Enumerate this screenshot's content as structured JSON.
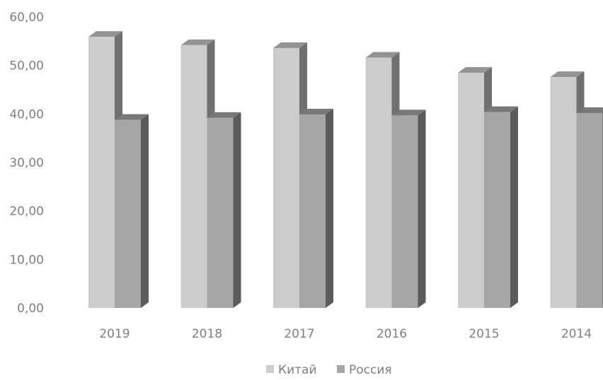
{
  "chart_data": {
    "type": "bar",
    "categories": [
      "2019",
      "2018",
      "2017",
      "2016",
      "2015",
      "2014"
    ],
    "series": [
      {
        "name": "Китай",
        "values": [
          55.9,
          54.2,
          53.6,
          51.6,
          48.5,
          47.6
        ],
        "color": "#cccccc"
      },
      {
        "name": "Россия",
        "values": [
          38.8,
          39.2,
          39.9,
          39.7,
          40.4,
          40.2
        ],
        "color": "#a6a6a6"
      }
    ],
    "y_ticks": [
      "0,00",
      "10,00",
      "20,00",
      "30,00",
      "40,00",
      "50,00",
      "60,00"
    ],
    "ylim": [
      0,
      60
    ],
    "grid": false,
    "legend_position": "bottom",
    "style": "3d-column",
    "title": "",
    "xlabel": "",
    "ylabel": ""
  }
}
